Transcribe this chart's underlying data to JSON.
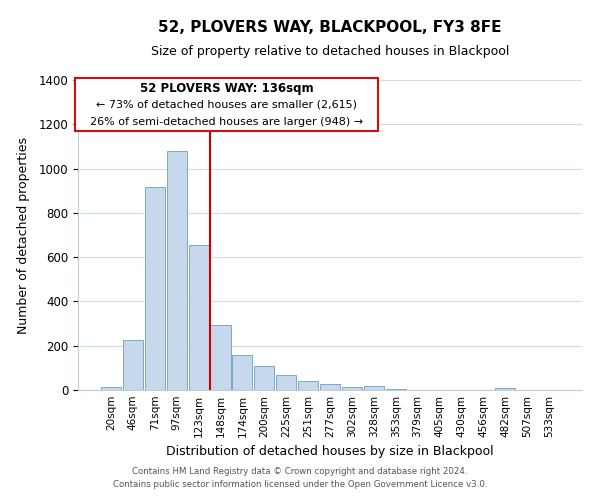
{
  "title": "52, PLOVERS WAY, BLACKPOOL, FY3 8FE",
  "subtitle": "Size of property relative to detached houses in Blackpool",
  "xlabel": "Distribution of detached houses by size in Blackpool",
  "ylabel": "Number of detached properties",
  "bar_labels": [
    "20sqm",
    "46sqm",
    "71sqm",
    "97sqm",
    "123sqm",
    "148sqm",
    "174sqm",
    "200sqm",
    "225sqm",
    "251sqm",
    "277sqm",
    "302sqm",
    "328sqm",
    "353sqm",
    "379sqm",
    "405sqm",
    "430sqm",
    "456sqm",
    "482sqm",
    "507sqm",
    "533sqm"
  ],
  "bar_values": [
    15,
    228,
    918,
    1078,
    655,
    293,
    158,
    107,
    68,
    40,
    25,
    15,
    18,
    5,
    2,
    0,
    0,
    0,
    10,
    0,
    2
  ],
  "bar_color": "#c8d8ec",
  "bar_edge_color": "#7aaac8",
  "vline_x": 4.5,
  "vline_color": "#cc0000",
  "ylim": [
    0,
    1400
  ],
  "yticks": [
    0,
    200,
    400,
    600,
    800,
    1000,
    1200,
    1400
  ],
  "annotation_title": "52 PLOVERS WAY: 136sqm",
  "annotation_line1": "← 73% of detached houses are smaller (2,615)",
  "annotation_line2": "26% of semi-detached houses are larger (948) →",
  "footer1": "Contains HM Land Registry data © Crown copyright and database right 2024.",
  "footer2": "Contains public sector information licensed under the Open Government Licence v3.0.",
  "background_color": "#ffffff",
  "grid_color": "#d0dce8"
}
